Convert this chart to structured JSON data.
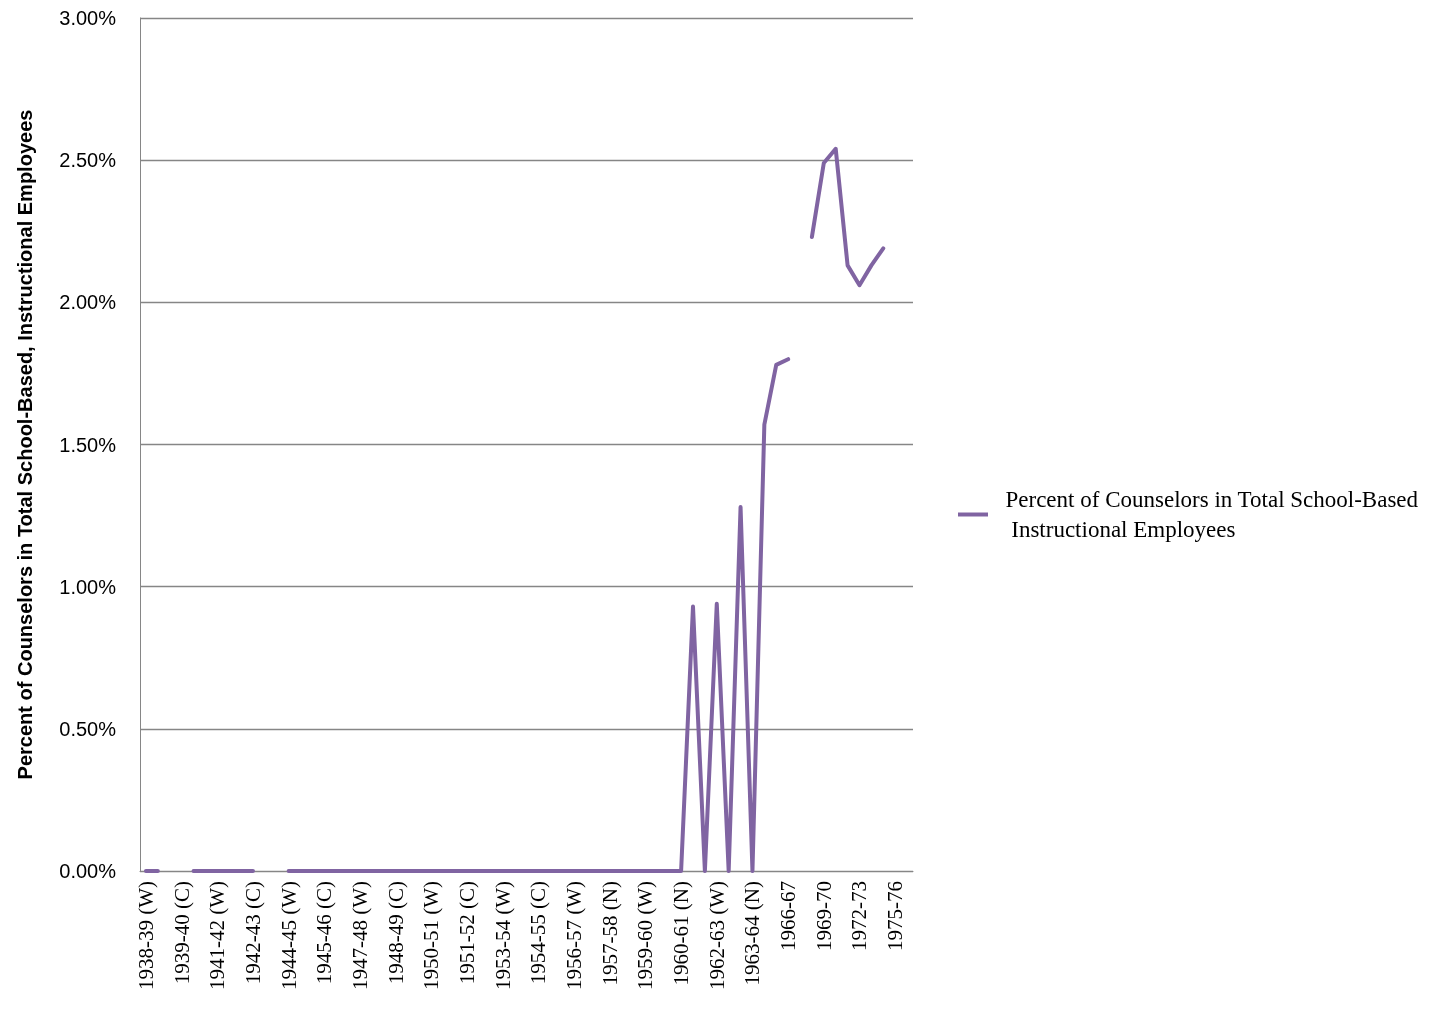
{
  "chart_data": {
    "type": "line",
    "ylabel": "Percent of Counselors in Total School-Based, Instructional Employees",
    "categories": [
      "1938-39 (W)",
      null,
      null,
      "1939-40 (C)",
      null,
      null,
      "1941-42 (W)",
      null,
      null,
      "1942-43 (C)",
      null,
      null,
      "1944-45 (W)",
      null,
      null,
      "1945-46 (C)",
      null,
      null,
      "1947-48 (W)",
      null,
      null,
      "1948-49 (C)",
      null,
      null,
      "1950-51 (W)",
      null,
      null,
      "1951-52 (C)",
      null,
      null,
      "1953-54 (W)",
      null,
      null,
      "1954-55 (C)",
      null,
      null,
      "1956-57 (W)",
      null,
      null,
      "1957-58 (N)",
      null,
      null,
      "1959-60 (W)",
      null,
      null,
      "1960-61 (N)",
      null,
      null,
      "1962-63 (W)",
      null,
      null,
      "1963-64 (N)",
      null,
      null,
      "1966-67",
      null,
      null,
      "1969-70",
      null,
      null,
      "1972-73",
      null,
      null,
      "1975-76",
      null
    ],
    "series": [
      {
        "name": "Percent of Counselors in Total School-Based Instructional Employees",
        "color": "#8064a2",
        "values": [
          0,
          0,
          null,
          null,
          0,
          0,
          0,
          0,
          0,
          0,
          null,
          null,
          0,
          0,
          0,
          0,
          0,
          0,
          0,
          0,
          0,
          0,
          0,
          0,
          0,
          0,
          0,
          0,
          0,
          0,
          0,
          0,
          0,
          0,
          0,
          0,
          0,
          0,
          0,
          0,
          0,
          0,
          0,
          0,
          0,
          0,
          0.93,
          0,
          0.94,
          0,
          1.28,
          0,
          1.57,
          1.78,
          1.8,
          null,
          2.23,
          2.49,
          2.54,
          2.13,
          2.06,
          2.13,
          2.19,
          null,
          null
        ]
      }
    ],
    "ylim": [
      0,
      3
    ],
    "yticks": [
      {
        "value": 0,
        "label": "0.00%"
      },
      {
        "value": 0.5,
        "label": "0.50%"
      },
      {
        "value": 1,
        "label": "1.00%"
      },
      {
        "value": 1.5,
        "label": "1.50%"
      },
      {
        "value": 2,
        "label": "2.00%"
      },
      {
        "value": 2.5,
        "label": "2.50%"
      },
      {
        "value": 3,
        "label": "3.00%"
      }
    ],
    "grid": "y",
    "legend": "right",
    "marker": "none",
    "line_style": "solid"
  }
}
